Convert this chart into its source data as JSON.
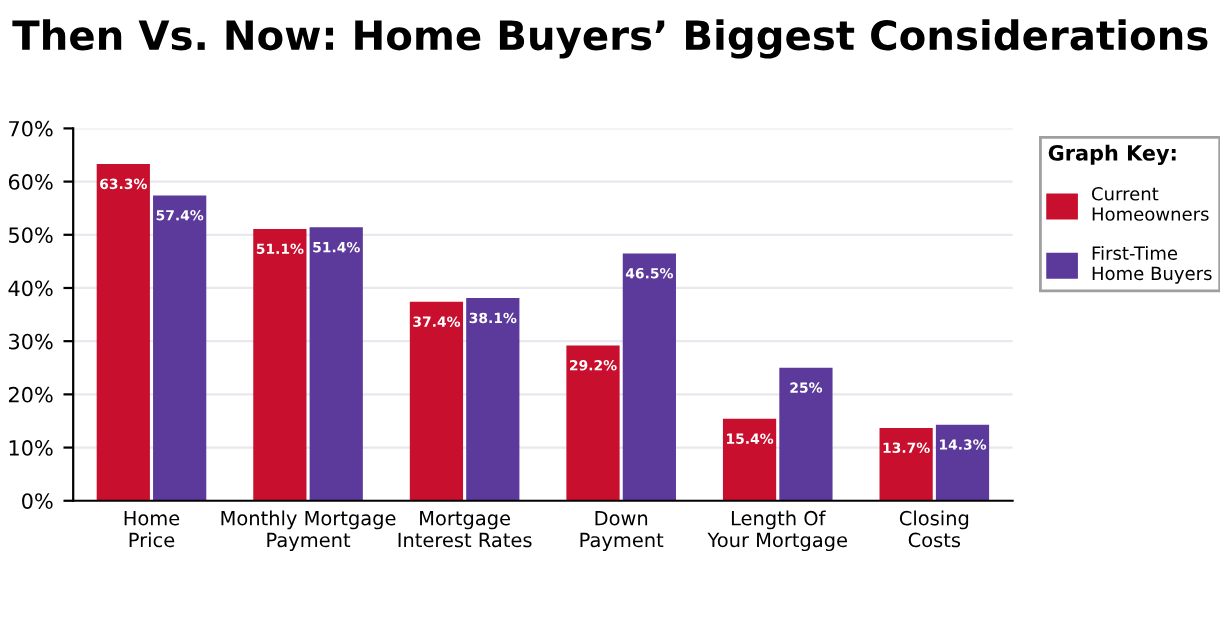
{
  "chart_data": {
    "type": "bar",
    "title": "Then Vs. Now: Home Buyers’ Biggest Considerations",
    "categories": [
      "Home\nPrice",
      "Monthly Mortgage\nPayment",
      "Mortgage\nInterest Rates",
      "Down\nPayment",
      "Length Of\nYour Mortgage",
      "Closing\nCosts"
    ],
    "series": [
      {
        "name": "Current\nHomeowners",
        "color": "#c8102e",
        "values": [
          63.3,
          51.1,
          37.4,
          29.2,
          15.4,
          13.7
        ],
        "value_labels": [
          "63.3%",
          "51.1%",
          "37.4%",
          "29.2%",
          "15.4%",
          "13.7%"
        ]
      },
      {
        "name": "First-Time\nHome Buyers",
        "color": "#5b3a9b",
        "values": [
          57.4,
          51.4,
          38.1,
          46.5,
          25,
          14.3
        ],
        "value_labels": [
          "57.4%",
          "51.4%",
          "38.1%",
          "46.5%",
          "25%",
          "14.3%"
        ]
      }
    ],
    "ylim": [
      0,
      70
    ],
    "yticks": [
      {
        "value": 0,
        "label": "0%"
      },
      {
        "value": 10,
        "label": "10%"
      },
      {
        "value": 20,
        "label": "20%"
      },
      {
        "value": 30,
        "label": "30%"
      },
      {
        "value": 40,
        "label": "40%"
      },
      {
        "value": 50,
        "label": "50%"
      },
      {
        "value": 60,
        "label": "60%"
      },
      {
        "value": 70,
        "label": "70%"
      }
    ],
    "grid": "y",
    "legend": "right",
    "legend_title": "Graph Key:"
  }
}
